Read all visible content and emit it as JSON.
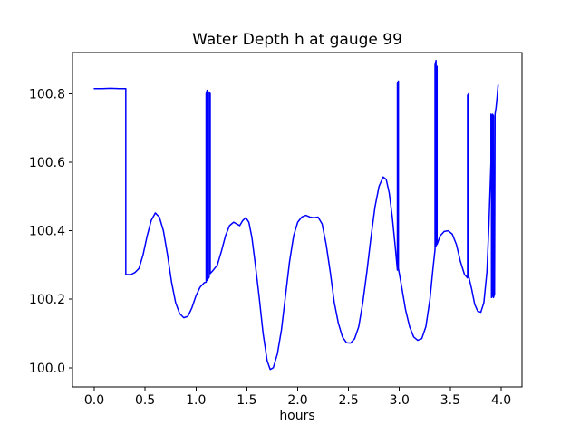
{
  "chart_data": {
    "type": "line",
    "title": "Water Depth h at gauge 99",
    "xlabel": "hours",
    "ylabel": "",
    "line_color": "#0000ff",
    "grid": false,
    "legend": null,
    "xlim": [
      -0.214,
      4.205
    ],
    "ylim": [
      99.944,
      100.92
    ],
    "xticks": {
      "values": [
        0.0,
        0.5,
        1.0,
        1.5,
        2.0,
        2.5,
        3.0,
        3.5,
        4.0
      ],
      "labels": [
        "0.0",
        "0.5",
        "1.0",
        "1.5",
        "2.0",
        "2.5",
        "3.0",
        "3.5",
        "4.0"
      ]
    },
    "yticks": {
      "values": [
        100.0,
        100.2,
        100.4,
        100.6,
        100.8
      ],
      "labels": [
        "100.0",
        "100.2",
        "100.4",
        "100.6",
        "100.8"
      ]
    },
    "points": [
      [
        0.0,
        100.815
      ],
      [
        0.08,
        100.815
      ],
      [
        0.16,
        100.816
      ],
      [
        0.24,
        100.815
      ],
      [
        0.31,
        100.815
      ],
      [
        0.31,
        100.272
      ],
      [
        0.36,
        100.272
      ],
      [
        0.4,
        100.278
      ],
      [
        0.44,
        100.29
      ],
      [
        0.48,
        100.33
      ],
      [
        0.52,
        100.385
      ],
      [
        0.56,
        100.43
      ],
      [
        0.6,
        100.452
      ],
      [
        0.64,
        100.44
      ],
      [
        0.68,
        100.4
      ],
      [
        0.72,
        100.33
      ],
      [
        0.76,
        100.25
      ],
      [
        0.8,
        100.19
      ],
      [
        0.84,
        100.158
      ],
      [
        0.88,
        100.146
      ],
      [
        0.92,
        100.15
      ],
      [
        0.96,
        100.175
      ],
      [
        1.0,
        100.21
      ],
      [
        1.04,
        100.235
      ],
      [
        1.08,
        100.248
      ],
      [
        1.1,
        100.25
      ],
      [
        1.1,
        100.8
      ],
      [
        1.11,
        100.81
      ],
      [
        1.11,
        100.255
      ],
      [
        1.13,
        100.265
      ],
      [
        1.13,
        100.805
      ],
      [
        1.14,
        100.8
      ],
      [
        1.14,
        100.275
      ],
      [
        1.17,
        100.285
      ],
      [
        1.21,
        100.3
      ],
      [
        1.25,
        100.34
      ],
      [
        1.29,
        100.385
      ],
      [
        1.33,
        100.415
      ],
      [
        1.37,
        100.425
      ],
      [
        1.4,
        100.42
      ],
      [
        1.43,
        100.415
      ],
      [
        1.46,
        100.43
      ],
      [
        1.49,
        100.438
      ],
      [
        1.52,
        100.425
      ],
      [
        1.55,
        100.38
      ],
      [
        1.58,
        100.31
      ],
      [
        1.62,
        100.21
      ],
      [
        1.66,
        100.1
      ],
      [
        1.7,
        100.02
      ],
      [
        1.73,
        99.995
      ],
      [
        1.76,
        100.0
      ],
      [
        1.8,
        100.04
      ],
      [
        1.84,
        100.11
      ],
      [
        1.88,
        100.21
      ],
      [
        1.92,
        100.31
      ],
      [
        1.96,
        100.385
      ],
      [
        2.0,
        100.425
      ],
      [
        2.04,
        100.44
      ],
      [
        2.08,
        100.445
      ],
      [
        2.12,
        100.44
      ],
      [
        2.16,
        100.438
      ],
      [
        2.2,
        100.44
      ],
      [
        2.24,
        100.42
      ],
      [
        2.28,
        100.36
      ],
      [
        2.32,
        100.28
      ],
      [
        2.36,
        100.19
      ],
      [
        2.4,
        100.13
      ],
      [
        2.44,
        100.09
      ],
      [
        2.48,
        100.073
      ],
      [
        2.52,
        100.072
      ],
      [
        2.56,
        100.085
      ],
      [
        2.6,
        100.12
      ],
      [
        2.64,
        100.19
      ],
      [
        2.68,
        100.28
      ],
      [
        2.72,
        100.38
      ],
      [
        2.76,
        100.47
      ],
      [
        2.8,
        100.53
      ],
      [
        2.84,
        100.557
      ],
      [
        2.87,
        100.55
      ],
      [
        2.9,
        100.51
      ],
      [
        2.93,
        100.44
      ],
      [
        2.96,
        100.35
      ],
      [
        2.98,
        100.285
      ],
      [
        2.98,
        100.83
      ],
      [
        2.99,
        100.837
      ],
      [
        2.99,
        100.29
      ],
      [
        3.02,
        100.24
      ],
      [
        3.06,
        100.17
      ],
      [
        3.1,
        100.12
      ],
      [
        3.14,
        100.09
      ],
      [
        3.18,
        100.08
      ],
      [
        3.22,
        100.085
      ],
      [
        3.26,
        100.12
      ],
      [
        3.3,
        100.2
      ],
      [
        3.33,
        100.29
      ],
      [
        3.35,
        100.345
      ],
      [
        3.35,
        100.885
      ],
      [
        3.36,
        100.897
      ],
      [
        3.36,
        100.355
      ],
      [
        3.37,
        100.88
      ],
      [
        3.37,
        100.36
      ],
      [
        3.4,
        100.385
      ],
      [
        3.44,
        100.398
      ],
      [
        3.48,
        100.4
      ],
      [
        3.52,
        100.39
      ],
      [
        3.56,
        100.36
      ],
      [
        3.6,
        100.31
      ],
      [
        3.64,
        100.272
      ],
      [
        3.67,
        100.262
      ],
      [
        3.67,
        100.795
      ],
      [
        3.68,
        100.8
      ],
      [
        3.68,
        100.268
      ],
      [
        3.71,
        100.23
      ],
      [
        3.74,
        100.185
      ],
      [
        3.77,
        100.165
      ],
      [
        3.8,
        100.162
      ],
      [
        3.83,
        100.19
      ],
      [
        3.86,
        100.28
      ],
      [
        3.88,
        100.42
      ],
      [
        3.9,
        100.6
      ],
      [
        3.9,
        100.74
      ],
      [
        3.905,
        100.735
      ],
      [
        3.905,
        100.205
      ],
      [
        3.915,
        100.21
      ],
      [
        3.915,
        100.74
      ],
      [
        3.925,
        100.735
      ],
      [
        3.925,
        100.205
      ],
      [
        3.935,
        100.215
      ],
      [
        3.94,
        100.74
      ],
      [
        3.95,
        100.76
      ],
      [
        3.96,
        100.79
      ],
      [
        3.97,
        100.825
      ]
    ]
  }
}
